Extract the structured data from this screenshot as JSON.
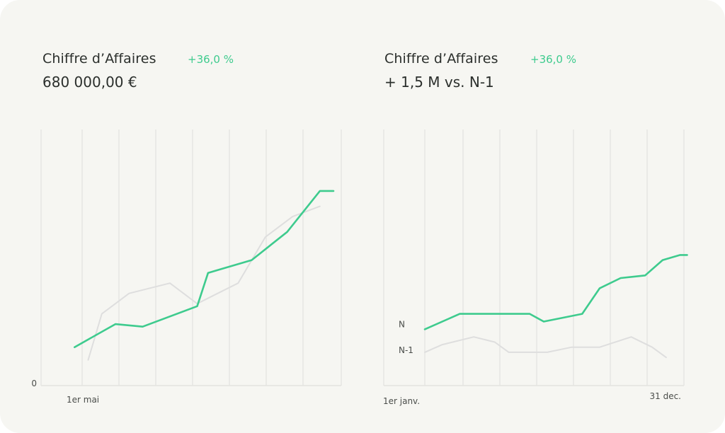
{
  "colors": {
    "current": "#3ecb8e",
    "previous": "#dedede",
    "grid": "#e3e3e0"
  },
  "panels": [
    {
      "title": "Chiffre d’Affaires",
      "delta": "+36,0 %",
      "value": "680 000,00 €"
    },
    {
      "title": "Chiffre d’Affaires",
      "delta": "+36,0 %",
      "value": "+ 1,5 M vs. N-1"
    }
  ],
  "chart_data": [
    {
      "type": "line",
      "grid": true,
      "x_tick_labels": [
        "1er mai"
      ],
      "y_tick_labels": [
        "0"
      ],
      "ylim": [
        0,
        100
      ],
      "series": [
        {
          "values": [
            [
              0.5,
              15
            ],
            [
              2,
              24
            ],
            [
              3,
              23
            ],
            [
              5,
              31
            ],
            [
              5.4,
              44
            ],
            [
              7,
              49
            ],
            [
              8.3,
              60
            ],
            [
              9.5,
              76
            ],
            [
              10,
              76
            ]
          ]
        },
        {
          "values": [
            [
              1,
              10
            ],
            [
              1.5,
              28
            ],
            [
              2.5,
              36
            ],
            [
              4,
              40
            ],
            [
              5,
              32
            ],
            [
              6.5,
              40
            ],
            [
              7.5,
              58
            ],
            [
              8.5,
              66
            ],
            [
              9.5,
              70
            ]
          ]
        }
      ]
    },
    {
      "type": "line",
      "grid": true,
      "x_tick_labels": [
        "1er janv.",
        "31 dec."
      ],
      "ylim": [
        0,
        100
      ],
      "series": [
        {
          "name": "N",
          "values": [
            [
              0,
              22
            ],
            [
              1,
              28
            ],
            [
              2,
              28
            ],
            [
              3,
              28
            ],
            [
              3.4,
              25
            ],
            [
              4.5,
              28
            ],
            [
              5,
              38
            ],
            [
              5.6,
              42
            ],
            [
              6.3,
              43
            ],
            [
              6.8,
              49
            ],
            [
              7.3,
              51
            ],
            [
              7.5,
              51
            ]
          ]
        },
        {
          "name": "N-1",
          "values": [
            [
              0,
              13
            ],
            [
              0.5,
              16
            ],
            [
              1.4,
              19
            ],
            [
              2,
              17
            ],
            [
              2.4,
              13
            ],
            [
              3.5,
              13
            ],
            [
              4.2,
              15
            ],
            [
              5,
              15
            ],
            [
              5.9,
              19
            ],
            [
              6.5,
              15
            ],
            [
              6.9,
              11
            ]
          ]
        }
      ]
    }
  ]
}
